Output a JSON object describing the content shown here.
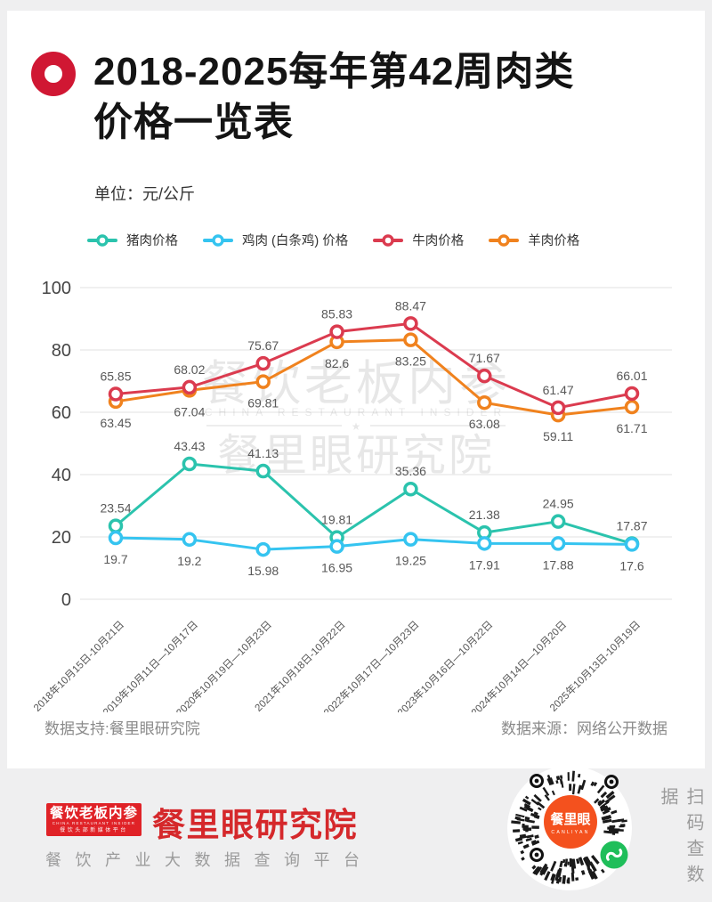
{
  "header": {
    "title_line1": "2018-2025每年第42周肉类",
    "title_line2": "价格一览表",
    "unit_label": "单位：元/公斤"
  },
  "chart_data": {
    "type": "line",
    "title": "2018-2025每年第42周肉类价格一览表",
    "ylabel": "元/公斤",
    "xlabel": "",
    "ylim": [
      0,
      100
    ],
    "yticks": [
      0,
      20,
      40,
      60,
      80,
      100
    ],
    "grid": "horizontal",
    "legend_position": "top",
    "categories": [
      "2018年10月15日-10月21日",
      "2019年10月11日—10月17日",
      "2020年10月19日—10月23日",
      "2021年10月18日-10月22日",
      "2022年10月17日—10月23日",
      "2023年10月16日—10月22日",
      "2024年10月14日—10月20日",
      "2025年10月13日-10月19日"
    ],
    "series": [
      {
        "key": "pork",
        "name": "猪肉价格",
        "color": "#2BC3AD",
        "label_side": "above",
        "values": [
          23.54,
          43.43,
          41.13,
          19.81,
          35.36,
          21.38,
          24.95,
          17.87
        ]
      },
      {
        "key": "chicken",
        "name": "鸡肉 (白条鸡) 价格",
        "color": "#35C4F0",
        "label_side": "below",
        "values": [
          19.7,
          19.2,
          15.98,
          16.95,
          19.25,
          17.91,
          17.88,
          17.6
        ]
      },
      {
        "key": "beef",
        "name": "牛肉价格",
        "color": "#DB3B4F",
        "label_side": "above",
        "values": [
          65.85,
          68.02,
          75.67,
          85.83,
          88.47,
          71.67,
          61.47,
          66.01
        ]
      },
      {
        "key": "mutton",
        "name": "羊肉价格",
        "color": "#F0821E",
        "label_side": "below",
        "values": [
          63.45,
          67.04,
          69.81,
          82.6,
          83.25,
          63.08,
          59.11,
          61.71
        ]
      }
    ]
  },
  "watermark": {
    "line1": "餐饮老板内参",
    "line2": "CHINA RESTAURANT INSIDER",
    "star": "★",
    "line3": "餐里眼研究院"
  },
  "footer": {
    "support": "数据支持:餐里眼研究院",
    "source": "数据来源：网络公开数据"
  },
  "branding": {
    "logo_box": {
      "line1": "餐饮老板内参",
      "line2": "CHINA RESTAURANT INSIDER",
      "line3": "餐饮头部新媒体平台"
    },
    "org_name": "餐里眼研究院",
    "tagline": "餐饮产业大数据查询平台",
    "qr_center_name": "餐里眼",
    "qr_center_sub": "CANLIYAN",
    "scan_hint": "扫码查数据"
  },
  "colors": {
    "accent_red": "#D01733",
    "brand_red": "#E02227",
    "org_red": "#D5282B",
    "qr_orange": "#F4511E",
    "wechat_green": "#1FBE5A",
    "gridline": "#E7E7E7"
  }
}
